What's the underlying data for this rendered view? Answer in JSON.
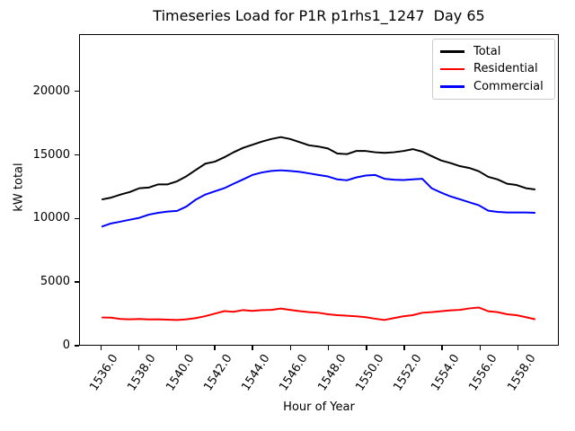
{
  "colors": {
    "background": "#ffffff",
    "axes": "#000000",
    "legend_border": "#cccccc"
  },
  "chart_data": {
    "type": "line",
    "title": "Timeseries Load for P1R p1rhs1_1247  Day 65",
    "xlabel": "Hour of Year",
    "ylabel": "kW total",
    "grid": false,
    "legend_position": "upper right",
    "xlim": [
      1534.85,
      1560.15
    ],
    "ylim": [
      0,
      24500
    ],
    "xticks": {
      "values": [
        1536,
        1538,
        1540,
        1542,
        1544,
        1546,
        1548,
        1550,
        1552,
        1554,
        1556,
        1558
      ],
      "labels": [
        "1536.0",
        "1538.0",
        "1540.0",
        "1542.0",
        "1544.0",
        "1546.0",
        "1548.0",
        "1550.0",
        "1552.0",
        "1554.0",
        "1556.0",
        "1558.0"
      ]
    },
    "yticks": {
      "values": [
        0,
        5000,
        10000,
        15000,
        20000
      ],
      "labels": [
        "0",
        "5000",
        "10000",
        "15000",
        "20000"
      ]
    },
    "x": [
      1536,
      1536.5,
      1537,
      1537.5,
      1538,
      1538.5,
      1539,
      1539.5,
      1540,
      1540.5,
      1541,
      1541.5,
      1542,
      1542.5,
      1543,
      1543.5,
      1544,
      1544.5,
      1545,
      1545.5,
      1546,
      1546.5,
      1547,
      1547.5,
      1548,
      1548.5,
      1549,
      1549.5,
      1550,
      1550.5,
      1551,
      1551.5,
      1552,
      1552.5,
      1553,
      1553.5,
      1554,
      1554.5,
      1555,
      1555.5,
      1556,
      1556.5,
      1557,
      1557.5,
      1558,
      1558.5,
      1559
    ],
    "series": [
      {
        "name": "Total",
        "color": "#000000",
        "values": [
          11450,
          11600,
          11850,
          12050,
          12350,
          12400,
          12650,
          12650,
          12900,
          13300,
          13800,
          14300,
          14450,
          14800,
          15200,
          15550,
          15800,
          16050,
          16250,
          16400,
          16250,
          16000,
          15750,
          15650,
          15500,
          15100,
          15050,
          15300,
          15300,
          15200,
          15150,
          15200,
          15300,
          15450,
          15250,
          14900,
          14550,
          14350,
          14100,
          13950,
          13700,
          13250,
          13050,
          12700,
          12600,
          12350,
          12250
        ]
      },
      {
        "name": "Residential",
        "color": "#ff0000",
        "values": [
          2100,
          2080,
          1980,
          1950,
          1980,
          1940,
          1950,
          1920,
          1900,
          1950,
          2050,
          2200,
          2400,
          2600,
          2550,
          2680,
          2620,
          2680,
          2700,
          2800,
          2700,
          2600,
          2520,
          2470,
          2350,
          2280,
          2240,
          2190,
          2120,
          2000,
          1900,
          2050,
          2190,
          2280,
          2470,
          2520,
          2590,
          2660,
          2700,
          2820,
          2890,
          2590,
          2520,
          2350,
          2280,
          2120,
          1950
        ]
      },
      {
        "name": "Commercial",
        "color": "#0000ff",
        "values": [
          9300,
          9550,
          9700,
          9850,
          10000,
          10250,
          10400,
          10500,
          10550,
          10900,
          11450,
          11850,
          12100,
          12350,
          12700,
          13050,
          13400,
          13600,
          13720,
          13770,
          13720,
          13650,
          13530,
          13400,
          13280,
          13050,
          12980,
          13200,
          13350,
          13400,
          13100,
          13030,
          13000,
          13050,
          13100,
          12350,
          12000,
          11700,
          11470,
          11230,
          11000,
          10570,
          10470,
          10430,
          10420,
          10420,
          10400
        ]
      }
    ]
  }
}
